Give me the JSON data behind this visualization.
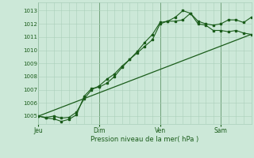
{
  "background_color": "#cce8d8",
  "grid_color": "#aacfba",
  "line_color": "#1a5c1a",
  "marker_color": "#1a5c1a",
  "xlabel": "Pression niveau de la mer( hPa )",
  "ylim": [
    1004.4,
    1013.6
  ],
  "yticks": [
    1005,
    1006,
    1007,
    1008,
    1009,
    1010,
    1011,
    1012,
    1013
  ],
  "day_positions": [
    0,
    48,
    96,
    144
  ],
  "day_labels": [
    "Jeu",
    "Dim",
    "Ven",
    "Sam"
  ],
  "xlim": [
    0,
    168
  ],
  "series1": {
    "x": [
      0,
      6,
      12,
      18,
      24,
      30,
      36,
      42,
      48,
      54,
      60,
      66,
      72,
      78,
      84,
      90,
      96,
      102,
      108,
      114,
      120,
      126,
      132,
      138,
      144,
      150,
      156,
      162,
      168
    ],
    "y": [
      1005.0,
      1004.9,
      1005.0,
      1004.85,
      1004.9,
      1005.3,
      1006.3,
      1007.0,
      1007.3,
      1007.8,
      1008.2,
      1008.8,
      1009.3,
      1009.8,
      1010.3,
      1010.8,
      1012.0,
      1012.2,
      1012.2,
      1012.3,
      1012.8,
      1012.2,
      1012.0,
      1011.9,
      1012.0,
      1012.3,
      1012.3,
      1012.1,
      1012.5
    ]
  },
  "series2": {
    "x": [
      0,
      6,
      12,
      18,
      24,
      30,
      36,
      42,
      48,
      54,
      60,
      66,
      72,
      78,
      84,
      90,
      96,
      102,
      108,
      114,
      120,
      126,
      132,
      138,
      144,
      150,
      156,
      162,
      168
    ],
    "y": [
      1005.0,
      1004.85,
      1004.8,
      1004.6,
      1004.75,
      1005.1,
      1006.5,
      1007.1,
      1007.2,
      1007.5,
      1008.0,
      1008.7,
      1009.3,
      1009.9,
      1010.6,
      1011.2,
      1012.1,
      1012.2,
      1012.5,
      1013.0,
      1012.8,
      1012.0,
      1011.9,
      1011.5,
      1011.5,
      1011.4,
      1011.5,
      1011.3,
      1011.2
    ]
  },
  "series3_straight": {
    "x": [
      0,
      168
    ],
    "y": [
      1005.0,
      1011.2
    ]
  }
}
